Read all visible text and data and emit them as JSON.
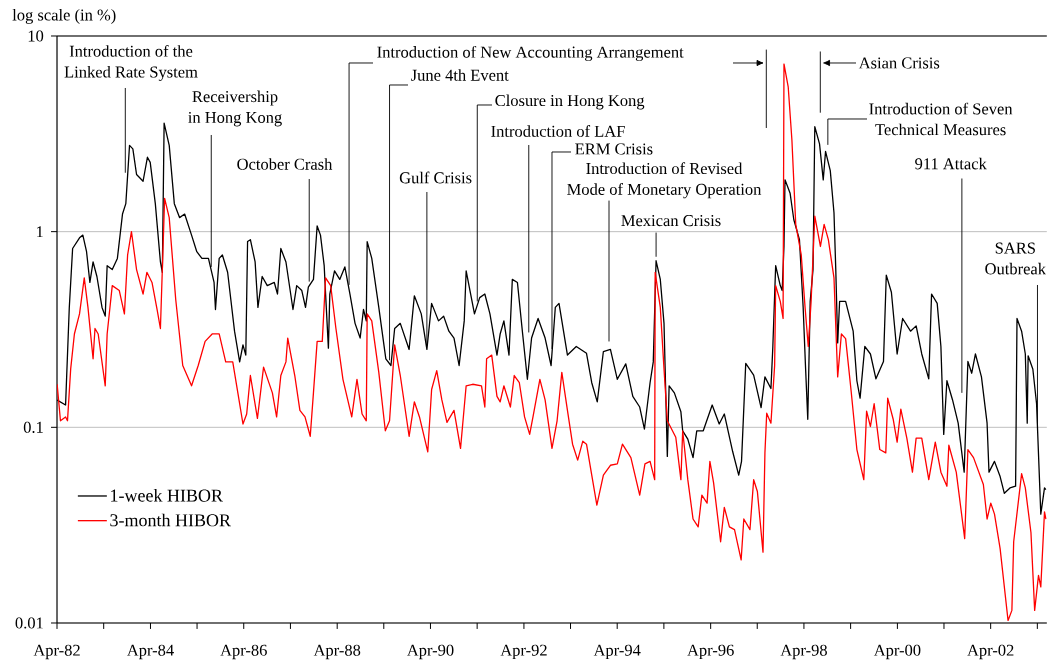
{
  "chart_data": {
    "type": "line",
    "ylabel": "log scale (in %)",
    "xlim": [
      "1982-04",
      "2003-06-14"
    ],
    "ylim": [
      0.01,
      10
    ],
    "log": "y",
    "grid": "y",
    "legend": "bottom left",
    "marker": "none",
    "line_style": "solid",
    "xticks": [
      {
        "value": "1982-04",
        "label": "Apr-82"
      },
      {
        "value": "1983-04",
        "label": null
      },
      {
        "value": "1984-04",
        "label": "Apr-84"
      },
      {
        "value": "1985-04",
        "label": null
      },
      {
        "value": "1986-04",
        "label": "Apr-86"
      },
      {
        "value": "1987-04",
        "label": null
      },
      {
        "value": "1988-04",
        "label": "Apr-88"
      },
      {
        "value": "1989-04",
        "label": null
      },
      {
        "value": "1990-04",
        "label": "Apr-90"
      },
      {
        "value": "1991-04",
        "label": null
      },
      {
        "value": "1992-04",
        "label": "Apr-92"
      },
      {
        "value": "1993-04",
        "label": null
      },
      {
        "value": "1994-04",
        "label": "Apr-94"
      },
      {
        "value": "1995-04",
        "label": null
      },
      {
        "value": "1996-04",
        "label": "Apr-96"
      },
      {
        "value": "1997-04",
        "label": null
      },
      {
        "value": "1998-04",
        "label": "Apr-98"
      },
      {
        "value": "1999-04",
        "label": null
      },
      {
        "value": "2000-04",
        "label": "Apr-00"
      },
      {
        "value": "2001-04",
        "label": null
      },
      {
        "value": "2002-04",
        "label": "Apr-02"
      },
      {
        "value": "2003-04",
        "label": null
      }
    ],
    "yticks": [
      0.01,
      0.1,
      1,
      10
    ],
    "series": [
      {
        "name": "1-week HIBOR",
        "color": "#000000",
        "x": [
          "1982-04-02",
          "1982-06-07",
          "1982-07-06",
          "1982-08-01",
          "1982-09-24",
          "1982-10-20",
          "1982-11-18",
          "1982-12-14",
          "1983-01-08",
          "1983-02-07",
          "1983-03-19",
          "1983-04-13",
          "1983-04-28",
          "1983-06-07",
          "1983-07-17",
          "1983-08-26",
          "1983-09-21",
          "1983-10-20",
          "1983-11-15",
          "1983-12-14",
          "1984-02-03",
          "1984-03-08",
          "1984-03-30",
          "1984-05-09",
          "1984-06-18",
          "1984-07-03",
          "1984-07-17",
          "1984-08-26",
          "1984-10-05",
          "1984-11-15",
          "1984-12-25",
          "1985-02-17",
          "1985-03-30",
          "1985-05-09",
          "1985-06-29",
          "1985-08-12",
          "1985-08-23",
          "1985-09-21",
          "1985-10-16",
          "1985-11-26",
          "1986-01-19",
          "1986-02-28",
          "1986-03-26",
          "1986-04-17",
          "1986-05-01",
          "1986-05-23",
          "1986-06-29",
          "1986-07-21",
          "1986-08-23",
          "1986-10-02",
          "1986-11-26",
          "1986-12-21",
          "1987-01-16",
          "1987-02-25",
          "1987-04-21",
          "1987-05-20",
          "1987-06-29",
          "1987-07-28",
          "1987-08-19",
          "1987-09-28",
          "1987-10-27",
          "1987-11-22",
          "1987-12-21",
          "1988-01-01",
          "1988-01-23",
          "1988-02-03",
          "1988-03-11",
          "1988-04-21",
          "1988-05-31",
          "1988-07-10",
          "1988-08-19",
          "1988-09-28",
          "1988-10-24",
          "1988-11-15",
          "1988-11-22",
          "1988-12-28",
          "1989-02-21",
          "1989-04-17",
          "1989-05-27",
          "1989-06-25",
          "1989-08-08",
          "1989-10-16",
          "1989-11-26",
          "1990-01-19",
          "1990-03-04",
          "1990-04-10",
          "1990-06-03",
          "1990-07-13",
          "1990-08-23",
          "1990-10-02",
          "1990-11-11",
          "1990-12-21",
          "1991-01-05",
          "1991-03-11",
          "1991-04-21",
          "1991-05-31",
          "1991-07-10",
          "1991-09-03",
          "1991-09-28",
          "1991-10-27",
          "1991-12-06",
          "1992-01-01",
          "1992-02-10",
          "1992-03-22",
          "1992-04-28",
          "1992-05-31",
          "1992-07-21",
          "1992-09-14",
          "1992-10-31",
          "1992-12-03",
          "1993-01-01",
          "1993-03-08",
          "1993-05-16",
          "1993-08-04",
          "1993-09-14",
          "1993-10-27",
          "1993-12-14",
          "1994-02-07",
          "1994-04-02",
          "1994-06-07",
          "1994-08-01",
          "1994-09-24",
          "1994-10-31",
          "1994-12-14",
          "1995-01-08",
          "1995-01-30",
          "1995-03-04",
          "1995-04-02",
          "1995-04-28",
          "1995-05-12",
          "1995-06-22",
          "1995-08-12",
          "1995-08-26",
          "1995-10-05",
          "1995-11-15",
          "1995-12-14",
          "1996-02-03",
          "1996-04-13",
          "1996-06-07",
          "1996-07-17",
          "1996-09-21",
          "1996-11-07",
          "1996-11-29",
          "1997-01-01",
          "1997-03-04",
          "1997-05-01",
          "1997-05-31",
          "1997-07-17",
          "1997-08-01",
          "1997-08-23",
          "1997-09-28",
          "1997-10-13",
          "1997-10-27",
          "1997-11-04",
          "1997-12-14",
          "1998-01-12",
          "1998-02-25",
          "1998-03-26",
          "1998-04-13",
          "1998-05-01",
          "1998-05-20",
          "1998-06-11",
          "1998-06-25",
          "1998-08-01",
          "1998-08-30",
          "1998-09-17",
          "1998-10-24",
          "1998-11-22",
          "1998-12-06",
          "1998-12-21",
          "1999-01-05",
          "1999-02-21",
          "1999-04-21",
          "1999-05-20",
          "1999-06-14",
          "1999-07-21",
          "1999-09-03",
          "1999-10-16",
          "1999-12-14",
          "2000-01-05",
          "2000-02-14",
          "2000-03-30",
          "2000-05-12",
          "2000-07-13",
          "2000-08-26",
          "2000-10-09",
          "2000-12-03",
          "2000-12-25",
          "2001-02-07",
          "2001-03-08",
          "2001-03-30",
          "2001-04-24",
          "2001-06-07",
          "2001-07-21",
          "2001-09-06",
          "2001-10-05",
          "2001-11-04",
          "2001-12-03",
          "2002-01-19",
          "2002-03-04",
          "2002-03-19",
          "2002-05-01",
          "2002-06-14",
          "2002-07-17",
          "2002-08-30",
          "2002-10-13",
          "2002-10-24",
          "2002-11-29",
          "2002-12-28",
          "2003-01-12",
          "2003-01-19",
          "2003-02-25",
          "2003-03-26",
          "2003-04-28",
          "2003-05-27",
          "2003-06-07"
        ],
        "values": [
          0.138,
          0.13,
          0.41,
          0.82,
          0.93,
          0.96,
          0.79,
          0.55,
          0.7,
          0.59,
          0.41,
          0.37,
          0.67,
          0.64,
          0.73,
          1.23,
          1.39,
          2.76,
          2.65,
          1.96,
          1.81,
          2.4,
          2.26,
          1.39,
          0.7,
          0.62,
          3.59,
          2.76,
          1.39,
          1.18,
          1.23,
          0.96,
          0.79,
          0.73,
          0.73,
          0.55,
          0.4,
          0.73,
          0.76,
          0.62,
          0.31,
          0.216,
          0.264,
          0.234,
          0.89,
          0.91,
          0.7,
          0.41,
          0.59,
          0.53,
          0.55,
          0.48,
          0.82,
          0.7,
          0.4,
          0.53,
          0.5,
          0.41,
          0.52,
          0.57,
          1.07,
          0.96,
          0.67,
          0.48,
          0.254,
          0.48,
          0.63,
          0.57,
          0.66,
          0.48,
          0.34,
          0.286,
          0.4,
          0.35,
          0.89,
          0.73,
          0.41,
          0.224,
          0.207,
          0.32,
          0.34,
          0.25,
          0.47,
          0.38,
          0.25,
          0.43,
          0.35,
          0.37,
          0.31,
          0.286,
          0.207,
          0.35,
          0.63,
          0.38,
          0.46,
          0.48,
          0.38,
          0.234,
          0.3,
          0.35,
          0.234,
          0.57,
          0.55,
          0.3,
          0.176,
          0.286,
          0.36,
          0.286,
          0.207,
          0.41,
          0.43,
          0.234,
          0.259,
          0.239,
          0.169,
          0.135,
          0.244,
          0.25,
          0.176,
          0.211,
          0.144,
          0.127,
          0.098,
          0.169,
          0.216,
          0.71,
          0.57,
          0.34,
          0.071,
          0.163,
          0.15,
          0.12,
          0.096,
          0.087,
          0.07,
          0.096,
          0.096,
          0.13,
          0.104,
          0.117,
          0.075,
          0.057,
          0.067,
          0.212,
          0.185,
          0.126,
          0.181,
          0.158,
          0.259,
          0.67,
          0.53,
          0.5,
          0.84,
          1.84,
          1.57,
          1.15,
          0.91,
          0.41,
          0.207,
          0.11,
          0.44,
          0.64,
          3.44,
          2.81,
          1.84,
          2.57,
          2.05,
          1.25,
          0.64,
          0.27,
          0.44,
          0.44,
          0.31,
          0.173,
          0.141,
          0.259,
          0.237,
          0.177,
          0.217,
          0.6,
          0.49,
          0.237,
          0.36,
          0.31,
          0.33,
          0.237,
          0.177,
          0.48,
          0.43,
          0.259,
          0.092,
          0.173,
          0.138,
          0.105,
          0.059,
          0.217,
          0.189,
          0.237,
          0.181,
          0.105,
          0.059,
          0.067,
          0.056,
          0.046,
          0.049,
          0.05,
          0.36,
          0.31,
          0.237,
          0.105,
          0.232,
          0.198,
          0.132,
          0.036,
          0.049,
          0.048
        ]
      },
      {
        "name": "3-month HIBOR",
        "color": "#ff0000",
        "x": [
          "1982-04-02",
          "1982-04-28",
          "1982-06-07",
          "1982-06-22",
          "1982-07-17",
          "1982-08-15",
          "1982-09-24",
          "1982-10-31",
          "1982-11-29",
          "1983-01-08",
          "1983-01-23",
          "1983-02-17",
          "1983-04-13",
          "1983-04-28",
          "1983-06-07",
          "1983-08-01",
          "1983-09-10",
          "1983-10-05",
          "1983-11-04",
          "1983-12-14",
          "1984-02-03",
          "1984-03-04",
          "1984-04-13",
          "1984-05-23",
          "1984-06-18",
          "1984-07-21",
          "1984-08-26",
          "1984-10-16",
          "1984-12-10",
          "1985-02-17",
          "1985-04-10",
          "1985-06-03",
          "1985-07-28",
          "1985-09-21",
          "1985-11-11",
          "1986-01-05",
          "1986-02-14",
          "1986-03-26",
          "1986-04-24",
          "1986-05-23",
          "1986-07-17",
          "1986-09-03",
          "1986-11-11",
          "1986-12-14",
          "1987-01-16",
          "1987-02-25",
          "1987-03-11",
          "1987-05-05",
          "1987-06-14",
          "1987-07-24",
          "1987-09-03",
          "1987-09-28",
          "1987-10-27",
          "1987-12-06",
          "1988-01-01",
          "1988-02-10",
          "1988-03-22",
          "1988-05-16",
          "1988-07-24",
          "1988-09-03",
          "1988-10-13",
          "1988-11-15",
          "1988-11-22",
          "1988-12-28",
          "1989-02-21",
          "1989-04-13",
          "1989-05-16",
          "1989-06-25",
          "1989-08-08",
          "1989-10-16",
          "1989-11-26",
          "1990-01-05",
          "1990-03-11",
          "1990-04-10",
          "1990-05-20",
          "1990-06-29",
          "1990-08-08",
          "1990-10-02",
          "1990-11-22",
          "1991-01-05",
          "1991-02-25",
          "1991-05-05",
          "1991-05-31",
          "1991-06-14",
          "1991-07-24",
          "1991-09-03",
          "1991-09-28",
          "1991-10-27",
          "1991-12-17",
          "1992-01-16",
          "1992-02-25",
          "1992-04-06",
          "1992-05-16",
          "1992-06-11",
          "1992-08-04",
          "1992-09-14",
          "1992-11-07",
          "1992-12-17",
          "1993-01-23",
          "1993-03-08",
          "1993-04-17",
          "1993-05-27",
          "1993-07-06",
          "1993-08-04",
          "1993-09-14",
          "1993-10-24",
          "1993-12-14",
          "1994-02-07",
          "1994-04-02",
          "1994-05-12",
          "1994-07-17",
          "1994-09-24",
          "1994-11-04",
          "1994-12-14",
          "1995-01-19",
          "1995-01-23",
          "1995-03-04",
          "1995-04-02",
          "1995-04-28",
          "1995-07-03",
          "1995-08-12",
          "1995-08-26",
          "1995-10-05",
          "1995-11-15",
          "1995-12-25",
          "1996-01-23",
          "1996-03-04",
          "1996-03-26",
          "1996-04-24",
          "1996-06-18",
          "1996-07-17",
          "1996-08-26",
          "1996-10-05",
          "1996-11-26",
          "1996-12-17",
          "1997-02-03",
          "1997-03-04",
          "1997-04-02",
          "1997-05-16",
          "1997-05-31",
          "1997-06-14",
          "1997-07-17",
          "1997-08-15",
          "1997-08-23",
          "1997-09-28",
          "1997-10-20",
          "1997-10-27",
          "1997-11-29",
          "1997-12-28",
          "1998-01-27",
          "1998-03-11",
          "1998-04-10",
          "1998-05-05",
          "1998-05-27",
          "1998-06-25",
          "1998-08-08",
          "1998-09-06",
          "1998-10-09",
          "1998-11-22",
          "1998-12-21",
          "1999-01-19",
          "1999-02-21",
          "1999-04-06",
          "1999-05-20",
          "1999-07-13",
          "1999-08-04",
          "1999-09-03",
          "1999-10-02",
          "1999-11-15",
          "2000-01-01",
          "2000-01-16",
          "2000-02-28",
          "2000-03-30",
          "2000-04-28",
          "2000-06-14",
          "2000-07-28",
          "2000-08-26",
          "2000-10-09",
          "2000-12-03",
          "2001-01-23",
          "2001-03-08",
          "2001-04-24",
          "2001-05-09",
          "2001-07-06",
          "2001-09-10",
          "2001-10-05",
          "2001-11-18",
          "2002-02-03",
          "2002-03-04",
          "2002-04-02",
          "2002-05-01",
          "2002-06-14",
          "2002-08-15",
          "2002-09-14",
          "2002-09-28",
          "2002-11-29",
          "2002-12-28",
          "2003-02-10",
          "2003-03-11",
          "2003-04-10",
          "2003-04-28",
          "2003-05-27",
          "2003-06-07"
        ],
        "values": [
          0.166,
          0.108,
          0.113,
          0.108,
          0.199,
          0.3,
          0.38,
          0.58,
          0.41,
          0.224,
          0.32,
          0.3,
          0.163,
          0.3,
          0.53,
          0.5,
          0.38,
          0.76,
          1.0,
          0.64,
          0.48,
          0.62,
          0.55,
          0.4,
          0.32,
          1.48,
          1.18,
          0.45,
          0.207,
          0.163,
          0.207,
          0.275,
          0.3,
          0.3,
          0.216,
          0.216,
          0.15,
          0.104,
          0.117,
          0.184,
          0.111,
          0.203,
          0.15,
          0.113,
          0.184,
          0.216,
          0.286,
          0.184,
          0.122,
          0.113,
          0.09,
          0.15,
          0.275,
          0.275,
          0.58,
          0.53,
          0.32,
          0.176,
          0.113,
          0.176,
          0.117,
          0.108,
          0.38,
          0.35,
          0.191,
          0.096,
          0.108,
          0.264,
          0.184,
          0.09,
          0.135,
          0.113,
          0.075,
          0.156,
          0.195,
          0.138,
          0.106,
          0.122,
          0.078,
          0.163,
          0.166,
          0.163,
          0.127,
          0.224,
          0.234,
          0.144,
          0.135,
          0.163,
          0.127,
          0.184,
          0.169,
          0.113,
          0.092,
          0.113,
          0.176,
          0.138,
          0.078,
          0.108,
          0.191,
          0.122,
          0.082,
          0.068,
          0.085,
          0.082,
          0.057,
          0.04,
          0.057,
          0.064,
          0.065,
          0.082,
          0.07,
          0.045,
          0.065,
          0.067,
          0.054,
          0.62,
          0.41,
          0.199,
          0.108,
          0.089,
          0.054,
          0.096,
          0.054,
          0.034,
          0.031,
          0.045,
          0.041,
          0.067,
          0.052,
          0.026,
          0.039,
          0.031,
          0.03,
          0.021,
          0.034,
          0.03,
          0.054,
          0.047,
          0.023,
          0.074,
          0.118,
          0.105,
          0.207,
          0.53,
          0.44,
          0.36,
          7.2,
          5.5,
          2.94,
          1.09,
          0.76,
          0.41,
          0.259,
          0.44,
          1.2,
          0.84,
          1.09,
          0.91,
          0.58,
          0.181,
          0.3,
          0.284,
          0.151,
          0.077,
          0.054,
          0.121,
          0.101,
          0.132,
          0.077,
          0.074,
          0.141,
          0.11,
          0.084,
          0.124,
          0.088,
          0.059,
          0.088,
          0.088,
          0.054,
          0.084,
          0.059,
          0.05,
          0.081,
          0.059,
          0.027,
          0.077,
          0.07,
          0.051,
          0.034,
          0.041,
          0.036,
          0.024,
          0.0103,
          0.0116,
          0.026,
          0.058,
          0.049,
          0.029,
          0.0116,
          0.0175,
          0.0153,
          0.037,
          0.034
        ]
      }
    ],
    "annotations": [
      {
        "text": "Introduction of the Linked Rate System",
        "x": "1983-09-17",
        "y": 2.0
      },
      {
        "text": "Receivership in Hong Kong",
        "x": "1985-07-21",
        "y": 0.63
      },
      {
        "text": "October Crash",
        "x": "1987-08-26",
        "y": 0.53
      },
      {
        "text": "Introduction of New Accounting Arrangement",
        "x": "1988-07-03",
        "y": 0.51
      },
      {
        "text": "June 4th Event",
        "x": "1989-05-16",
        "y": 0.21
      },
      {
        "text": "Gulf Crisis",
        "x": "1990-03-04",
        "y": 0.25
      },
      {
        "text": "Closure in Hong Kong",
        "x": "1991-04-02",
        "y": 0.42
      },
      {
        "text": "Introduction of LAF",
        "x": "1992-05-09",
        "y": 0.3
      },
      {
        "text": "ERM Crisis",
        "x": "1992-11-07",
        "y": 0.24
      },
      {
        "text": "Introduction of Revised Mode of Monetary Operation",
        "x": "1994-01-27",
        "y": 0.25
      },
      {
        "text": "Mexican Crisis",
        "x": "1995-01-30",
        "y": 0.71
      },
      "Asian Crisis",
      {
        "text": "Introduction of Seven Technical Measures",
        "x": "1998-10-05",
        "y": 2.3
      },
      {
        "text": "911 Attack",
        "x": "2001-08-19",
        "y": 0.15
      },
      {
        "text": "SARS Outbreak",
        "x": "2003-04-02",
        "y": 0.1
      }
    ]
  }
}
